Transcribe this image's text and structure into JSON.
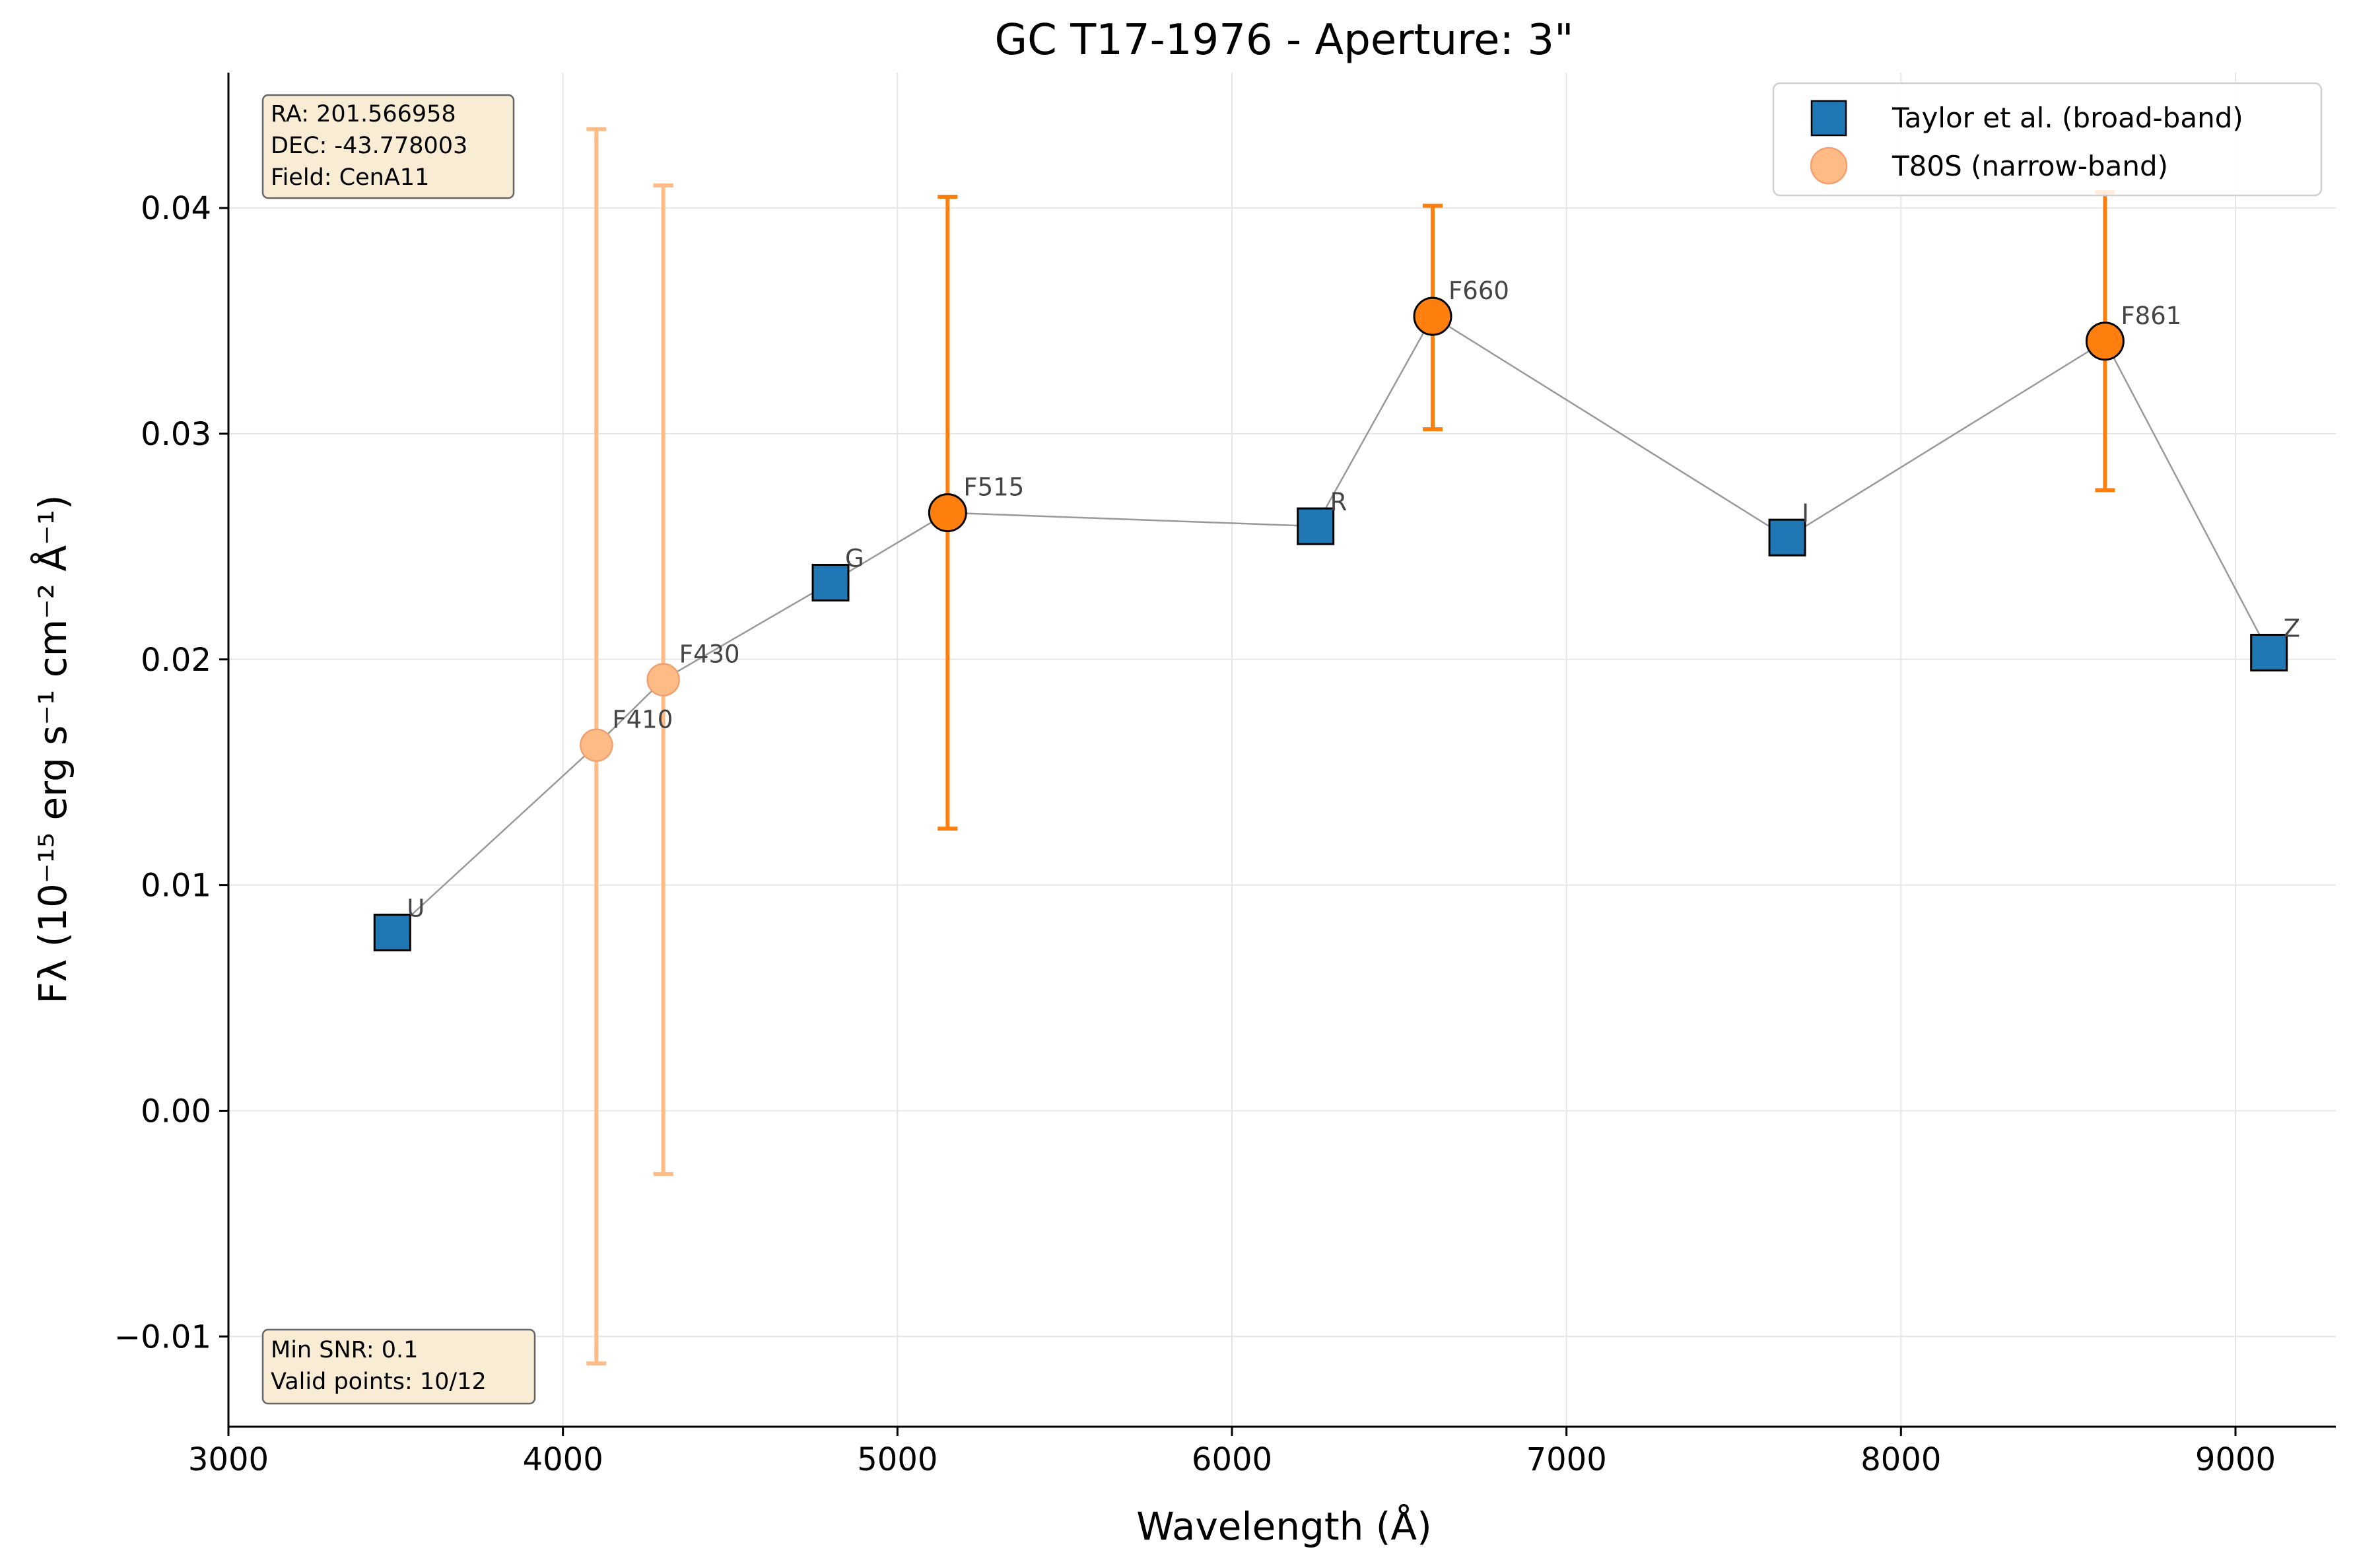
{
  "chart_data": {
    "type": "scatter",
    "title": "GC T17-1976 - Aperture: 3\"",
    "xlabel": "Wavelength (Å)",
    "ylabel": "Fλ (10⁻¹⁵ erg s⁻¹ cm⁻² Å⁻¹)",
    "xlim": [
      3000,
      9300
    ],
    "ylim": [
      -0.014,
      0.046
    ],
    "xticks": [
      3000,
      4000,
      5000,
      6000,
      7000,
      8000,
      9000
    ],
    "yticks": [
      -0.01,
      0.0,
      0.01,
      0.02,
      0.03,
      0.04
    ],
    "xtick_labels": [
      "3000",
      "4000",
      "5000",
      "6000",
      "7000",
      "8000",
      "9000"
    ],
    "ytick_labels": [
      "−0.01",
      "0.00",
      "0.01",
      "0.02",
      "0.03",
      "0.04"
    ],
    "grid": true,
    "legend_position": "top-right",
    "series": [
      {
        "name": "Taylor et al. (broad-band)",
        "marker": "square",
        "color": "#1f77b4",
        "points": [
          {
            "label": "U",
            "x": 3490,
            "y": 0.0079
          },
          {
            "label": "G",
            "x": 4800,
            "y": 0.0234
          },
          {
            "label": "R",
            "x": 6250,
            "y": 0.0259
          },
          {
            "label": "I",
            "x": 7660,
            "y": 0.0254
          },
          {
            "label": "Z",
            "x": 9100,
            "y": 0.0203
          }
        ]
      },
      {
        "name": "T80S (narrow-band)",
        "marker": "circle",
        "color": "#ff7f0e",
        "points": [
          {
            "label": "F410",
            "x": 4100,
            "y": 0.0162,
            "yerr_low": -0.0112,
            "yerr_high": 0.0435,
            "faded": true
          },
          {
            "label": "F430",
            "x": 4300,
            "y": 0.0191,
            "yerr_low": -0.0028,
            "yerr_high": 0.041,
            "faded": true
          },
          {
            "label": "F515",
            "x": 5150,
            "y": 0.0265,
            "yerr_low": 0.0125,
            "yerr_high": 0.0405,
            "faded": false
          },
          {
            "label": "F660",
            "x": 6600,
            "y": 0.0352,
            "yerr_low": 0.0302,
            "yerr_high": 0.0401,
            "faded": false
          },
          {
            "label": "F861",
            "x": 8610,
            "y": 0.0341,
            "yerr_low": 0.0275,
            "yerr_high": 0.0407,
            "faded": false
          }
        ]
      }
    ],
    "connecting_line_order": [
      "U",
      "F410",
      "F430",
      "G",
      "F515",
      "R",
      "F660",
      "I",
      "F861",
      "Z"
    ],
    "connecting_line_color": "#999999"
  },
  "info_box_top": {
    "lines": [
      "RA: 201.566958",
      "DEC: -43.778003",
      "Field: CenA11"
    ]
  },
  "info_box_bottom": {
    "lines": [
      "Min SNR: 0.1",
      "Valid points: 10/12"
    ]
  },
  "colors": {
    "broad": "#1f77b4",
    "narrow": "#ff7f0e",
    "narrow_faded": "#ffbb85",
    "grid": "#e6e6e6",
    "info_box_fill": "#f8ecd4"
  }
}
